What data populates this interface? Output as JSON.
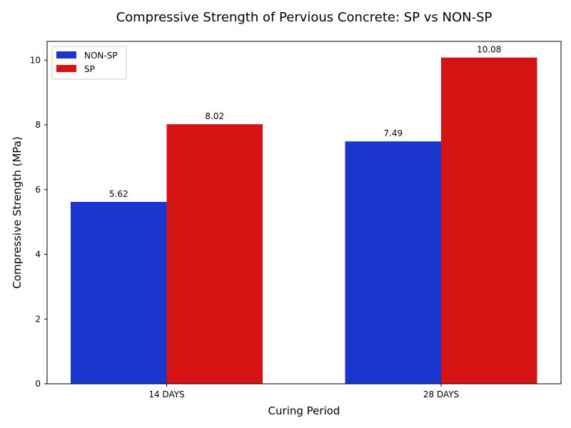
{
  "chart_data": {
    "type": "bar",
    "title": "Compressive Strength of Pervious Concrete: SP vs NON-SP",
    "xlabel": "Curing Period",
    "ylabel": "Compressive Strength (MPa)",
    "categories": [
      "14 DAYS",
      "28 DAYS"
    ],
    "series": [
      {
        "name": "NON-SP",
        "values": [
          5.62,
          7.49
        ],
        "labels": [
          "5.62",
          "7.49"
        ],
        "color": "#1a36cf"
      },
      {
        "name": "SP",
        "values": [
          8.02,
          10.08
        ],
        "labels": [
          "8.02",
          "10.08"
        ],
        "color": "#d61313"
      }
    ],
    "ylim": [
      0,
      10.58
    ],
    "yticks": [
      0,
      2,
      4,
      6,
      8,
      10
    ],
    "grid": false,
    "legend_position": "top-left"
  }
}
